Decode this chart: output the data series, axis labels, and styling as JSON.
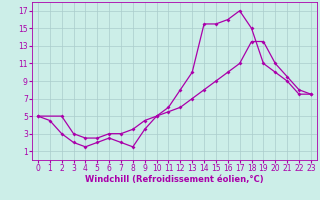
{
  "xlabel": "Windchill (Refroidissement éolien,°C)",
  "bg_color": "#cceee8",
  "grid_color": "#aacccc",
  "line_color": "#aa00aa",
  "xlim": [
    -0.5,
    23.5
  ],
  "ylim": [
    0,
    18
  ],
  "xticks": [
    0,
    1,
    2,
    3,
    4,
    5,
    6,
    7,
    8,
    9,
    10,
    11,
    12,
    13,
    14,
    15,
    16,
    17,
    18,
    19,
    20,
    21,
    22,
    23
  ],
  "yticks": [
    1,
    3,
    5,
    7,
    9,
    11,
    13,
    15,
    17
  ],
  "line1_x": [
    0,
    1,
    2,
    3,
    4,
    5,
    6,
    7,
    8,
    9,
    10,
    11,
    12,
    13,
    14,
    15,
    16,
    17,
    18,
    19,
    20,
    21,
    22,
    23
  ],
  "line1_y": [
    5,
    4.5,
    3,
    2,
    1.5,
    2,
    2.5,
    2,
    1.5,
    3.5,
    5,
    6,
    8,
    10,
    15.5,
    15.5,
    16,
    17,
    15,
    11,
    10,
    9,
    7.5,
    7.5
  ],
  "line2_x": [
    0,
    2,
    3,
    4,
    5,
    6,
    7,
    8,
    9,
    10,
    11,
    12,
    13,
    14,
    15,
    16,
    17,
    18,
    19,
    20,
    21,
    22,
    23
  ],
  "line2_y": [
    5,
    5,
    3,
    2.5,
    2.5,
    3,
    3,
    3.5,
    4.5,
    5,
    5.5,
    6,
    7,
    8,
    9,
    10,
    11,
    13.5,
    13.5,
    11,
    9.5,
    8,
    7.5
  ],
  "marker": "D",
  "markersize": 2.0,
  "linewidth": 0.9,
  "tick_fontsize": 5.5,
  "xlabel_fontsize": 6.0
}
